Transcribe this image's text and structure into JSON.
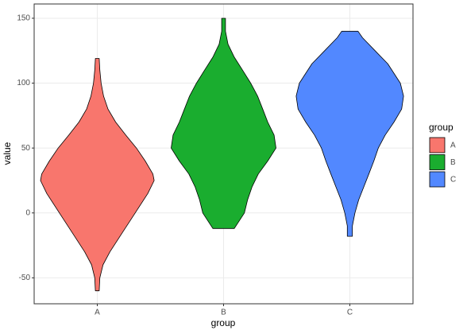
{
  "chart_data": {
    "type": "violin",
    "x_label": "group",
    "y_label": "value",
    "legend_title": "group",
    "categories": [
      "A",
      "B",
      "C"
    ],
    "ylim": [
      -70,
      161
    ],
    "yticks": [
      -50,
      0,
      50,
      100,
      150
    ],
    "grid": true,
    "legend": "right",
    "series": [
      {
        "name": "A",
        "color": "#f8766d",
        "y": [
          119,
          110,
          100,
          90,
          80,
          70,
          60,
          50,
          40,
          30,
          25,
          15,
          0,
          -15,
          -30,
          -40,
          -50,
          -60
        ],
        "widths": [
          0.03,
          0.04,
          0.06,
          0.1,
          0.17,
          0.29,
          0.45,
          0.62,
          0.76,
          0.88,
          0.9,
          0.8,
          0.6,
          0.4,
          0.2,
          0.09,
          0.04,
          0.03
        ]
      },
      {
        "name": "B",
        "color": "#1aad2f",
        "y": [
          150,
          140,
          130,
          120,
          110,
          100,
          90,
          80,
          70,
          60,
          50,
          40,
          30,
          20,
          10,
          0,
          -12
        ],
        "widths": [
          0.03,
          0.03,
          0.07,
          0.17,
          0.3,
          0.43,
          0.54,
          0.62,
          0.7,
          0.8,
          0.83,
          0.7,
          0.55,
          0.45,
          0.38,
          0.33,
          0.17
        ]
      },
      {
        "name": "C",
        "color": "#5288ff",
        "y": [
          140,
          135,
          125,
          115,
          100,
          90,
          80,
          70,
          60,
          50,
          40,
          30,
          20,
          10,
          0,
          -10,
          -18
        ],
        "widths": [
          0.13,
          0.2,
          0.4,
          0.6,
          0.8,
          0.85,
          0.82,
          0.7,
          0.56,
          0.45,
          0.38,
          0.3,
          0.22,
          0.14,
          0.08,
          0.04,
          0.04
        ]
      }
    ]
  }
}
